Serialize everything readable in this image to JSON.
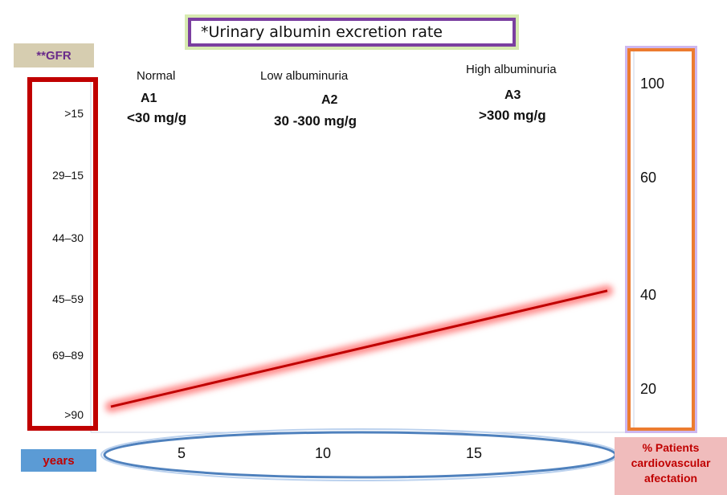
{
  "chart_data": {
    "type": "line",
    "title": "*Urinary albumin excretion rate",
    "y_left_label": "**GFR",
    "y_left_ticks": [
      ">90",
      "69–89",
      "45–59",
      "44–30",
      "29–15",
      ">15"
    ],
    "y_right_label": "% Patients cardiovascular afectation",
    "y_right_ticks": [
      20,
      40,
      60,
      100
    ],
    "x_label": "years",
    "x_ticks": [
      5,
      10,
      15
    ],
    "categories": [
      {
        "name": "Normal",
        "code": "A1",
        "range": "<30 mg/g"
      },
      {
        "name": "Low albuminuria",
        "code": "A2",
        "range": "30 -300 mg/g"
      },
      {
        "name": "High albuminuria",
        "code": "A3",
        "range": ">300 mg/g"
      }
    ],
    "series": [
      {
        "x": [
          1,
          20
        ],
        "y": [
          15,
          46
        ]
      }
    ],
    "xlim": [
      1,
      20
    ],
    "ylim_right": [
      12,
      104
    ],
    "colors": {
      "line": "#c00000",
      "glow": "#ff8a8a",
      "ellipse": "#4f81bd"
    }
  }
}
